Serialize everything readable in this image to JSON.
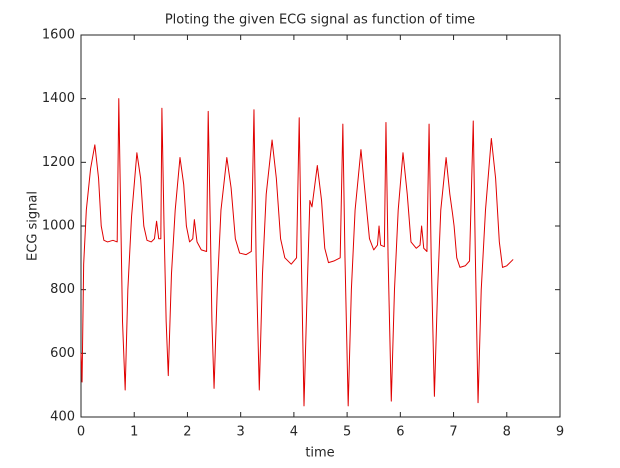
{
  "chart_data": {
    "type": "line",
    "title": "Ploting the given ECG signal as function of time",
    "xlabel": "time",
    "ylabel": "ECG signal",
    "xlim": [
      0,
      9
    ],
    "xticks": [
      0,
      1,
      2,
      3,
      4,
      5,
      6,
      7,
      8,
      9
    ],
    "ylim": [
      400,
      1600
    ],
    "yticks": [
      400,
      600,
      800,
      1000,
      1200,
      1400,
      1600
    ],
    "grid": false,
    "series": [
      {
        "name": "ECG",
        "color": "#e00000",
        "x": [
          0,
          0.02,
          0.05,
          0.1,
          0.18,
          0.26,
          0.33,
          0.38,
          0.43,
          0.5,
          0.6,
          0.68,
          0.71,
          0.74,
          0.78,
          0.83,
          0.88,
          0.95,
          1.05,
          1.12,
          1.18,
          1.24,
          1.32,
          1.38,
          1.42,
          1.46,
          1.5,
          1.52,
          1.56,
          1.6,
          1.64,
          1.7,
          1.77,
          1.86,
          1.93,
          1.98,
          2.04,
          2.1,
          2.13,
          2.18,
          2.26,
          2.36,
          2.39,
          2.43,
          2.46,
          2.5,
          2.56,
          2.63,
          2.74,
          2.82,
          2.9,
          2.98,
          3.1,
          3.2,
          3.25,
          3.29,
          3.35,
          3.41,
          3.48,
          3.59,
          3.67,
          3.75,
          3.83,
          3.95,
          4.05,
          4.1,
          4.14,
          4.19,
          4.25,
          4.3,
          4.34,
          4.44,
          4.52,
          4.58,
          4.65,
          4.75,
          4.87,
          4.92,
          4.96,
          5.02,
          5.08,
          5.15,
          5.26,
          5.34,
          5.42,
          5.5,
          5.57,
          5.6,
          5.63,
          5.7,
          5.73,
          5.77,
          5.83,
          5.89,
          5.96,
          6.05,
          6.13,
          6.2,
          6.3,
          6.37,
          6.4,
          6.44,
          6.5,
          6.54,
          6.58,
          6.64,
          6.7,
          6.76,
          6.86,
          6.93,
          6.98,
          7.01,
          7.06,
          7.12,
          7.22,
          7.3,
          7.37,
          7.41,
          7.46,
          7.52,
          7.6,
          7.71,
          7.79,
          7.86,
          7.92,
          8.0,
          8.12
        ],
        "values": [
          600,
          510,
          880,
          1050,
          1180,
          1255,
          1150,
          1000,
          955,
          950,
          955,
          950,
          1400,
          1100,
          700,
          485,
          800,
          1030,
          1230,
          1150,
          1000,
          955,
          950,
          960,
          1015,
          960,
          960,
          1370,
          1000,
          700,
          530,
          850,
          1050,
          1215,
          1130,
          1000,
          950,
          960,
          1020,
          950,
          925,
          920,
          1360,
          1000,
          700,
          490,
          800,
          1050,
          1215,
          1120,
          960,
          915,
          910,
          920,
          1365,
          900,
          485,
          850,
          1100,
          1270,
          1150,
          960,
          900,
          880,
          900,
          1340,
          900,
          435,
          800,
          1080,
          1060,
          1190,
          1080,
          930,
          885,
          890,
          900,
          1320,
          900,
          435,
          800,
          1050,
          1240,
          1100,
          960,
          925,
          940,
          1000,
          940,
          935,
          1325,
          900,
          450,
          800,
          1050,
          1230,
          1100,
          950,
          930,
          940,
          1000,
          930,
          920,
          1320,
          900,
          465,
          800,
          1050,
          1215,
          1100,
          1040,
          1000,
          900,
          870,
          875,
          890,
          1330,
          900,
          445,
          800,
          1050,
          1275,
          1150,
          950,
          870,
          875,
          895
        ]
      }
    ]
  }
}
